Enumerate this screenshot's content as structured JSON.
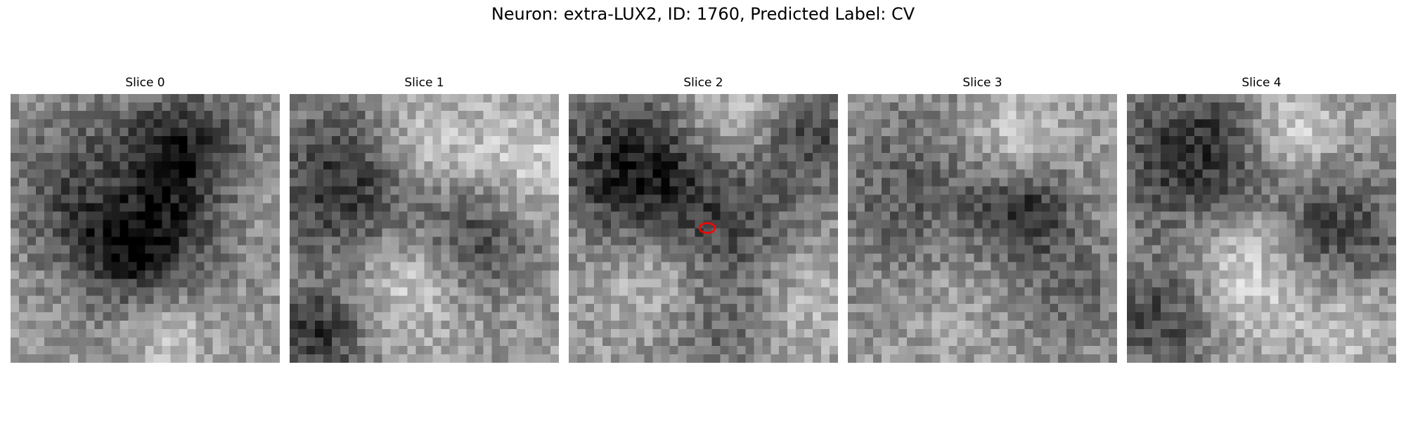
{
  "figure": {
    "title": "Neuron: extra-LUX2, ID: 1760, Predicted Label: CV",
    "marker_color": "#ff0000",
    "panels": [
      {
        "label": "Slice 0"
      },
      {
        "label": "Slice 1"
      },
      {
        "label": "Slice 2",
        "has_marker": true
      },
      {
        "label": "Slice 3"
      },
      {
        "label": "Slice 4"
      }
    ]
  }
}
